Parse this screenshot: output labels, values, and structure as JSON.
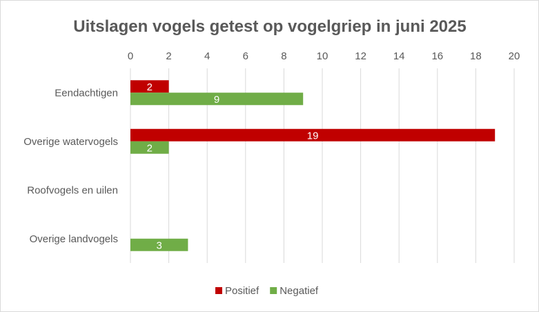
{
  "chart_data": {
    "type": "bar",
    "orientation": "horizontal",
    "title": "Uitslagen vogels getest op vogelgriep in juni 2025",
    "categories": [
      "Eendachtigen",
      "Overige watervogels",
      "Roofvogels en uilen",
      "Overige landvogels"
    ],
    "series": [
      {
        "name": "Positief",
        "color": "#c00000",
        "values": [
          2,
          19,
          0,
          0
        ]
      },
      {
        "name": "Negatief",
        "color": "#70ad47",
        "values": [
          9,
          2,
          0,
          3
        ]
      }
    ],
    "xlim": [
      0,
      20
    ],
    "x_ticks": [
      0,
      2,
      4,
      6,
      8,
      10,
      12,
      14,
      16,
      18,
      20
    ],
    "x_axis_position": "top",
    "grid": true,
    "legend_position": "bottom"
  }
}
